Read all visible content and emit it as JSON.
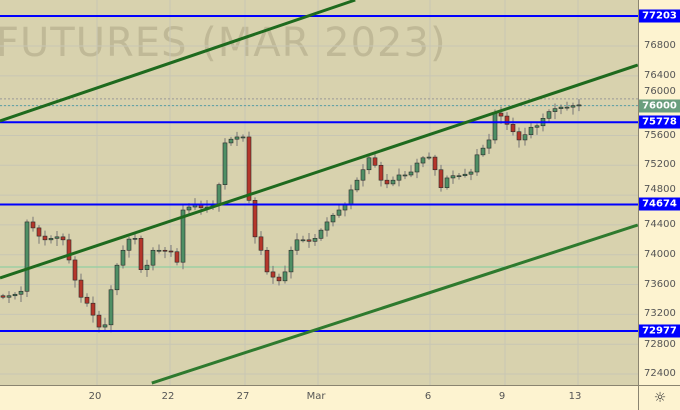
{
  "chart_data": {
    "type": "candlestick",
    "watermark": "FUTURES (MAR 2023)",
    "y_ticks": [
      72400,
      72800,
      73200,
      73600,
      74000,
      74400,
      74800,
      75200,
      75600,
      76000,
      76400,
      76800
    ],
    "ylim": [
      72230,
      77420
    ],
    "x_ticks": [
      "20",
      "22",
      "27",
      "Mar",
      "6",
      "9",
      "13"
    ],
    "grid": true,
    "closes": [
      73430,
      73450,
      73470,
      73510,
      74440,
      74360,
      74250,
      74200,
      74220,
      74240,
      74200,
      73930,
      73660,
      73430,
      73350,
      73190,
      73030,
      73060,
      73530,
      73860,
      74060,
      74210,
      74220,
      73800,
      73860,
      74060,
      74060,
      74050,
      74040,
      73900,
      74600,
      74640,
      74670,
      74630,
      74640,
      74670,
      74940,
      75500,
      75550,
      75580,
      75580,
      74730,
      74240,
      74060,
      73770,
      73700,
      73650,
      73770,
      74060,
      74200,
      74200,
      74180,
      74220,
      74330,
      74440,
      74530,
      74600,
      74670,
      74870,
      75000,
      75140,
      75300,
      75200,
      75000,
      74950,
      75000,
      75070,
      75070,
      75110,
      75230,
      75300,
      75310,
      75140,
      74900,
      75030,
      75060,
      75060,
      75080,
      75110,
      75340,
      75430,
      75540,
      75900,
      75860,
      75750,
      75650,
      75540,
      75610,
      75710,
      75730,
      75830,
      75920,
      75960,
      75980,
      75980,
      76000,
      76010
    ],
    "horizontal_levels": [
      {
        "price": 77203,
        "label": "77203",
        "color": "#0000ff"
      },
      {
        "price": 75778,
        "label": "75778",
        "color": "#0000ff"
      },
      {
        "price": 74674,
        "label": "74674",
        "color": "#0000ff"
      },
      {
        "price": 72977,
        "label": "72977",
        "color": "#0000ff"
      }
    ],
    "current_price": {
      "price": 76000,
      "label": "76000",
      "color": "#6a9e7e"
    },
    "reference_lines": [
      {
        "price": 76090,
        "style": "dotted",
        "color": "#999999"
      },
      {
        "price": 73835,
        "style": "solid",
        "color": "#7fcf9f"
      }
    ],
    "trend_lines": [
      {
        "bar_start": 0,
        "price_start": 75794,
        "bar_end": 59.2,
        "price_end": 77417,
        "color": "#1e6a1e"
      },
      {
        "bar_start": 0,
        "price_start": 73688,
        "bar_end": 106.3,
        "price_end": 76545,
        "color": "#1e6a1e"
      },
      {
        "bar_start": 25.3,
        "price_start": 72279,
        "bar_end": 106.3,
        "price_end": 74399,
        "color": "#2e7a2e"
      }
    ],
    "up_color": "#4f8f65",
    "down_color": "#b5362a"
  },
  "settings_icon": "gear-icon"
}
